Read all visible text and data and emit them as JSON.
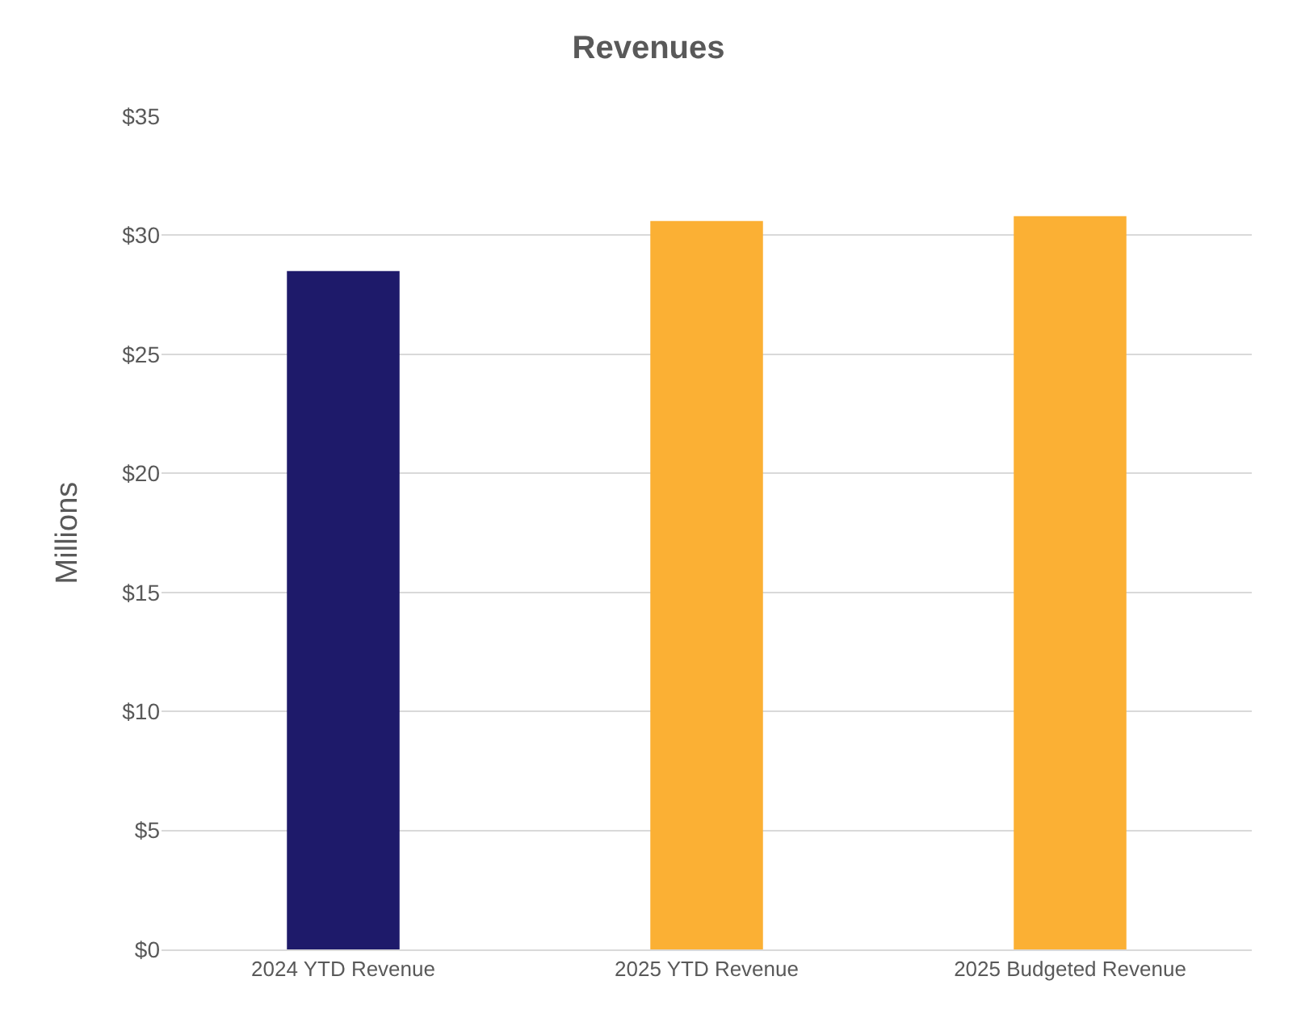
{
  "chart_data": {
    "type": "bar",
    "title": "Revenues",
    "ylabel": "Millions",
    "categories": [
      "2024 YTD Revenue",
      "2025 YTD Revenue",
      "2025 Budgeted Revenue"
    ],
    "values": [
      28.5,
      30.6,
      30.8
    ],
    "colors": [
      "#1e1a6a",
      "#fbb034",
      "#fbb034"
    ],
    "ylim": [
      0,
      35
    ],
    "yticks": [
      {
        "value": 0,
        "label": "$0"
      },
      {
        "value": 5,
        "label": "$5"
      },
      {
        "value": 10,
        "label": "$10"
      },
      {
        "value": 15,
        "label": "$15"
      },
      {
        "value": 20,
        "label": "$20"
      },
      {
        "value": 25,
        "label": "$25"
      },
      {
        "value": 30,
        "label": "$30"
      },
      {
        "value": 35,
        "label": "$35"
      }
    ],
    "grid": "y"
  }
}
